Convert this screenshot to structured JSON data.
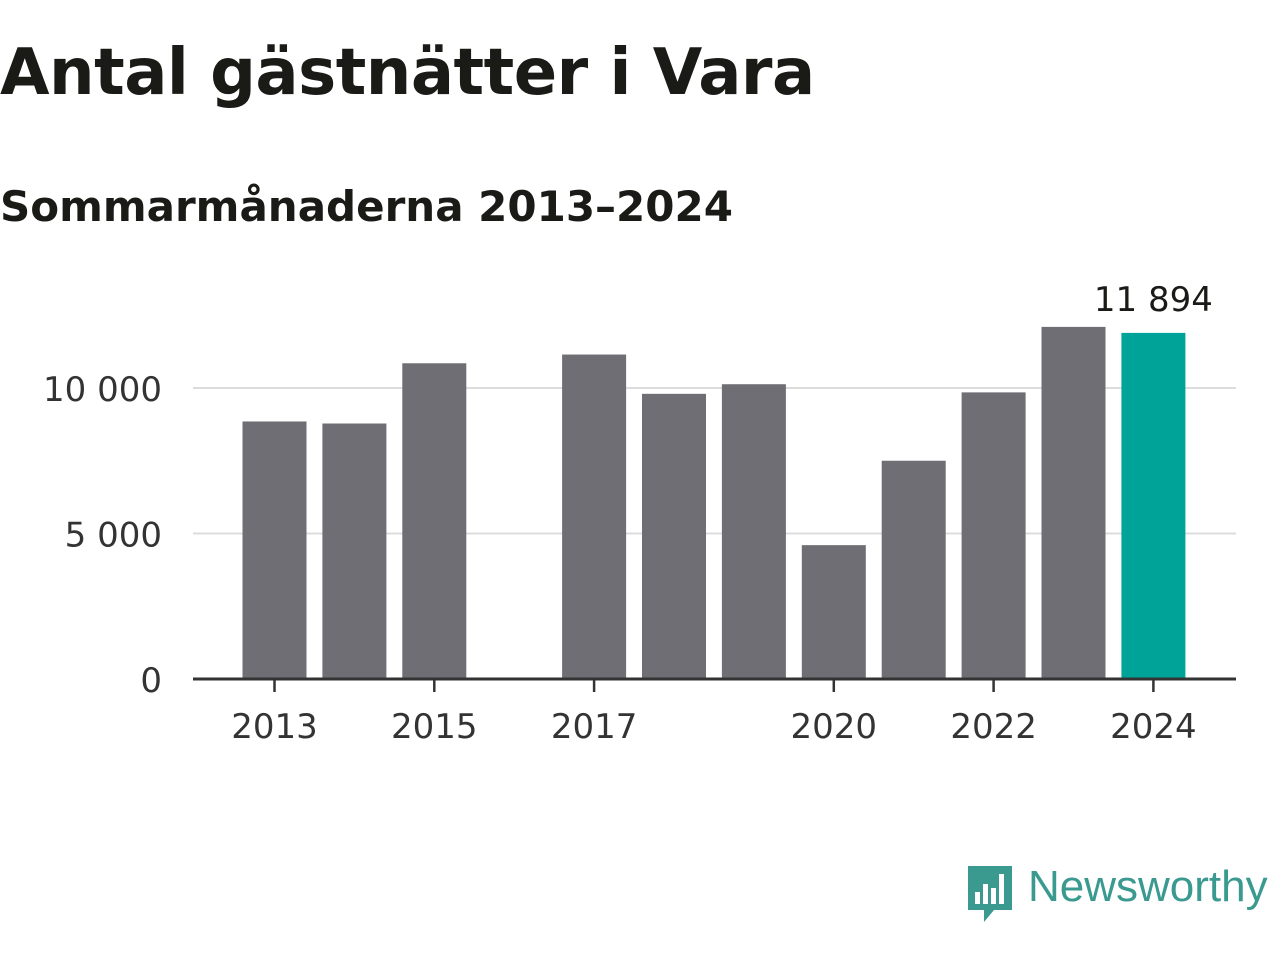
{
  "chart_data": {
    "type": "bar",
    "title": "Antal gästnätter i Vara",
    "subtitle": "Sommarmånaderna 2013–2024",
    "xlabel": "",
    "ylabel": "",
    "categories": [
      2013,
      2014,
      2015,
      2016,
      2017,
      2018,
      2019,
      2020,
      2021,
      2022,
      2023,
      2024
    ],
    "values": [
      8850,
      8780,
      10850,
      null,
      11150,
      9800,
      10130,
      4600,
      7500,
      9850,
      12100,
      11894
    ],
    "x_tick_labels": [
      "2013",
      "2015",
      "2017",
      "2020",
      "2022",
      "2024"
    ],
    "y_ticks": [
      0,
      5000,
      10000
    ],
    "y_tick_labels": [
      "0",
      "5 000",
      "10 000"
    ],
    "ylim": [
      0,
      12500
    ],
    "grid": "horizontal",
    "highlight": {
      "category": 2024,
      "label": "11 894"
    },
    "colors": {
      "bar": "#6f6e74",
      "highlight": "#00a398",
      "grid": "#dcdcdc",
      "axis": "#333333",
      "text": "#333333"
    }
  },
  "brand": {
    "name": "Newsworthy",
    "icon": "newsworthy-logo-icon",
    "color": "#3a9a90"
  }
}
